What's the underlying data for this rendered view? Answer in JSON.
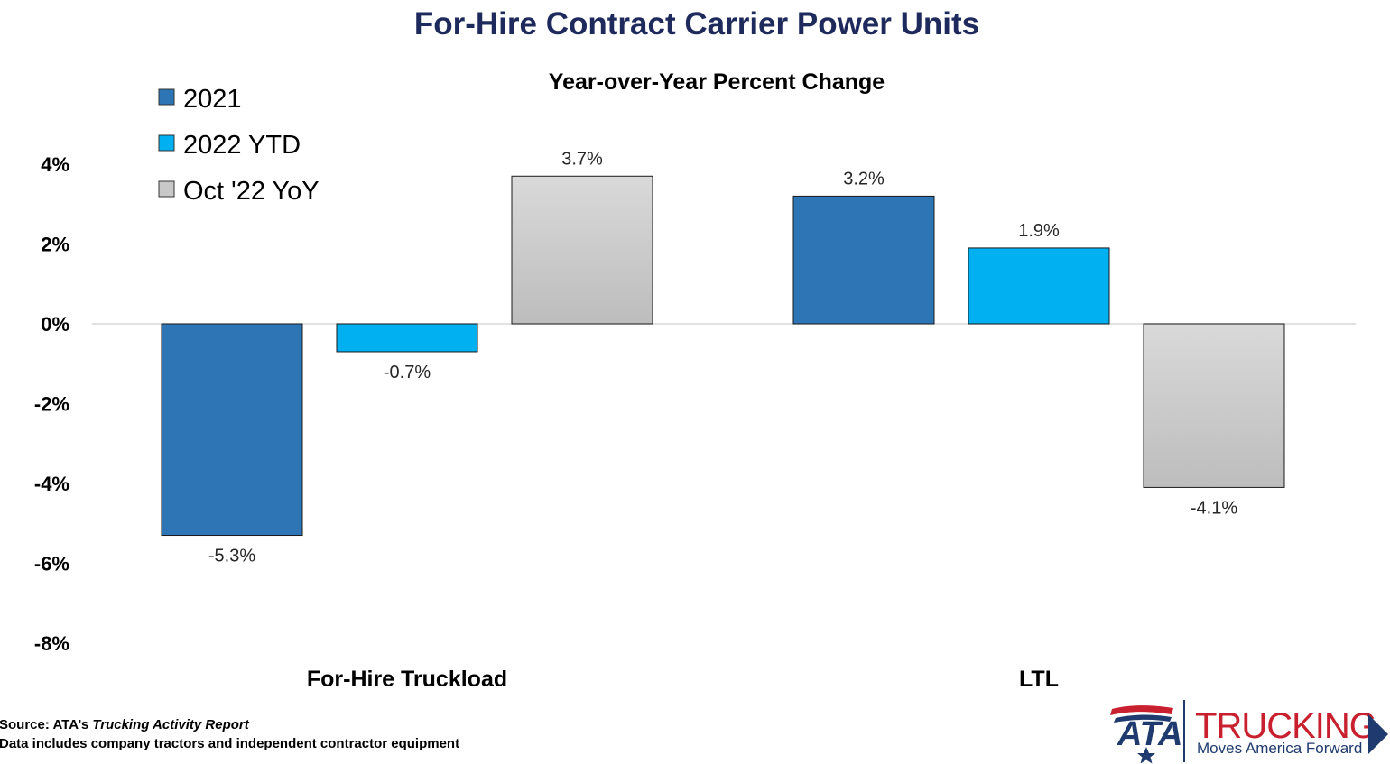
{
  "chart_data": {
    "type": "bar",
    "title": "For-Hire Contract Carrier Power Units",
    "subtitle": "Year-over-Year Percent Change",
    "categories": [
      "For-Hire Truckload",
      "LTL"
    ],
    "series": [
      {
        "name": "2021",
        "values": [
          -5.3,
          3.2
        ],
        "labels": [
          "-5.3%",
          "3.2%"
        ],
        "color": "#2E75B6"
      },
      {
        "name": "2022 YTD",
        "values": [
          -0.7,
          1.9
        ],
        "labels": [
          "-0.7%",
          "1.9%"
        ],
        "color": "#00B0F0"
      },
      {
        "name": "Oct '22 YoY",
        "values": [
          3.7,
          -4.1
        ],
        "labels": [
          "3.7%",
          "-4.1%"
        ],
        "color": "#C8C8C8"
      }
    ],
    "ylim": [
      -8,
      4
    ],
    "yticks": [
      4,
      2,
      0,
      -2,
      -4,
      -6,
      -8
    ],
    "ytick_labels": [
      "4%",
      "2%",
      "0%",
      "-2%",
      "-4%",
      "-6%",
      "-8%"
    ],
    "xlabel": "",
    "ylabel": "",
    "legend_position": "top-left",
    "grid": false,
    "title_color": "#1F2A5C"
  },
  "footnote": {
    "source_prefix": "Source: ATA’s ",
    "source_italic": "Trucking Activity Report",
    "note": "Data includes company tractors and independent contractor equipment"
  },
  "logo": {
    "ata": "ATA",
    "word": "TRUCKING",
    "tagline": "Moves America Forward",
    "red": "#C8202F",
    "navy": "#1F3A6E"
  }
}
